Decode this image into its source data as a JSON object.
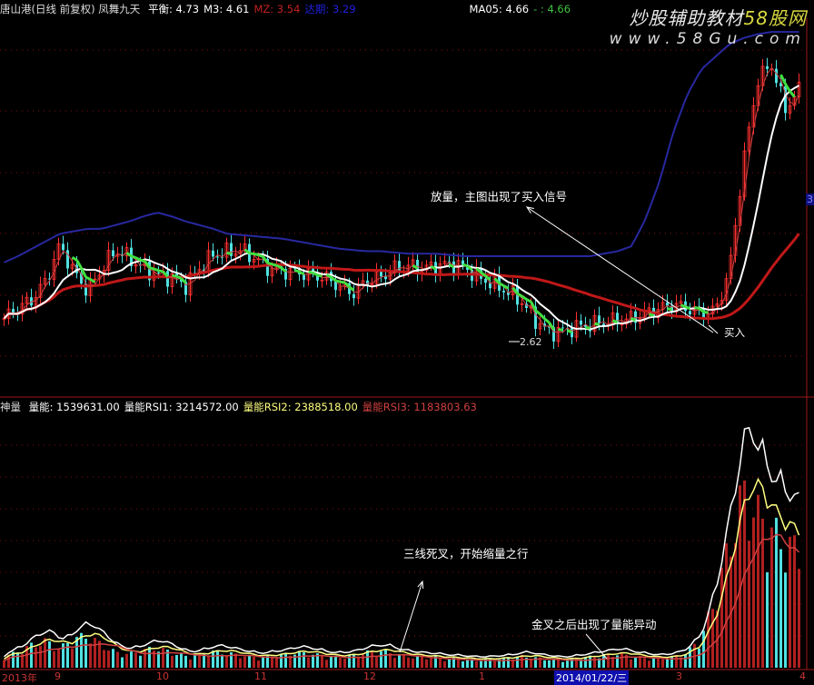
{
  "header": {
    "title": "唐山港(日线 前复权) 凤舞九天",
    "items": [
      {
        "label": "平衡: 4.73",
        "color": "#ffffff"
      },
      {
        "label": "M3: 4.61",
        "color": "#ffffff"
      },
      {
        "label": "MZ: 3.54",
        "color": "#c02020"
      },
      {
        "label": "达期: 3.29",
        "color": "#2020e0"
      },
      {
        "label": "MA05: 4.66",
        "color": "#ffffff"
      },
      {
        "label": "- : 4.66",
        "color": "#40c040"
      }
    ]
  },
  "volume_header": {
    "title": "神量",
    "items": [
      {
        "label": "量能: 1539631.00",
        "color": "#ffffff"
      },
      {
        "label": "量能RSI1: 3214572.00",
        "color": "#ffffff"
      },
      {
        "label": "量能RSI2: 2388518.00",
        "color": "#ffff80"
      },
      {
        "label": "量能RSI3: 1183803.63",
        "color": "#d04040"
      }
    ]
  },
  "watermark": {
    "line1": "炒股辅助教材",
    "line1b": "58股网",
    "line2": "www.58Gu.com"
  },
  "right_label": "3",
  "annotations": {
    "buy_signal": "放量，主图出现了买入信号",
    "buy": "买入",
    "low": "2.62",
    "dead_cross": "三线死叉，开始缩量之行",
    "golden_cross": "金叉之后出现了量能异动"
  },
  "x_axis": {
    "labels": [
      "2013年",
      "9",
      "10",
      "11",
      "12",
      "1",
      "3",
      "4"
    ],
    "cursor_date": "2014/01/22/三"
  },
  "colors": {
    "up": "#ff3030",
    "down": "#50e0e0",
    "grid": "#801010",
    "ma_short": "#ffffff",
    "ma_long": "#c01818",
    "band": "#2828a0",
    "fall": "#40e040"
  },
  "chart_data": [
    {
      "type": "candlestick",
      "title": "唐山港(日线 前复权)",
      "ylim": [
        2.17,
        5.21
      ],
      "close": [
        2.8,
        2.88,
        2.95,
        3.1,
        3.39,
        3.17,
        3.02,
        3.2,
        3.35,
        3.28,
        3.2,
        3.15,
        3.13,
        3.06,
        3.2,
        3.31,
        3.33,
        3.35,
        3.28,
        3.2,
        3.18,
        3.17,
        3.15,
        3.13,
        3.06,
        3.0,
        3.1,
        3.13,
        3.2,
        3.22,
        3.2,
        3.22,
        3.24,
        3.21,
        3.13,
        3.08,
        3.02,
        2.95,
        2.8,
        2.69,
        2.7,
        2.73,
        2.75,
        2.77,
        2.78,
        2.8,
        2.84,
        2.88,
        2.91,
        2.88,
        2.84,
        2.86,
        3.17,
        4.04,
        4.7,
        4.85,
        4.48,
        4.63
      ],
      "low_marker": 2.62,
      "band": [
        3.25,
        3.3,
        3.36,
        3.42,
        3.48,
        3.5,
        3.52,
        3.52,
        3.55,
        3.58,
        3.62,
        3.65,
        3.62,
        3.58,
        3.55,
        3.52,
        3.48,
        3.47,
        3.46,
        3.45,
        3.44,
        3.42,
        3.4,
        3.38,
        3.36,
        3.35,
        3.34,
        3.34,
        3.33,
        3.32,
        3.32,
        3.32,
        3.31,
        3.3,
        3.3,
        3.3,
        3.3,
        3.3,
        3.3,
        3.3,
        3.3,
        3.3,
        3.3,
        3.32,
        3.34,
        3.38,
        3.6,
        3.9,
        4.3,
        4.6,
        4.8,
        4.9,
        5.0,
        5.05,
        5.08,
        5.1,
        5.1,
        5.1
      ]
    },
    {
      "type": "bar",
      "title": "神量",
      "ylim": [
        0,
        3500000
      ],
      "volume": [
        150000,
        200000,
        300000,
        350000,
        250000,
        380000,
        420000,
        300000,
        200000,
        180000,
        230000,
        260000,
        200000,
        150000,
        170000,
        210000,
        190000,
        160000,
        140000,
        150000,
        170000,
        200000,
        180000,
        150000,
        140000,
        160000,
        200000,
        220000,
        180000,
        150000,
        140000,
        130000,
        120000,
        110000,
        100000,
        110000,
        120000,
        150000,
        130000,
        110000,
        100000,
        120000,
        140000,
        160000,
        180000,
        150000,
        130000,
        120000,
        140000,
        200000,
        400000,
        900000,
        1600000,
        2300000,
        2000000,
        1800000,
        1600000,
        1539631
      ]
    }
  ]
}
